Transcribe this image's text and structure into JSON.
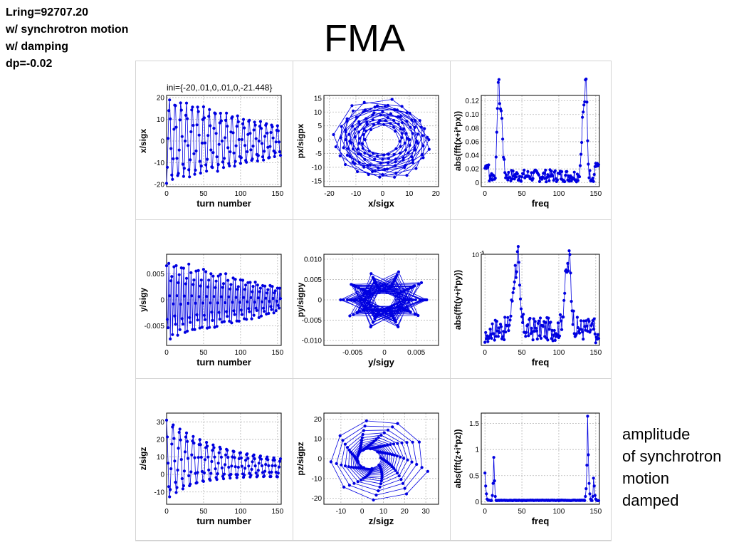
{
  "header": {
    "note_lines": [
      "Lring=92707.20",
      "w/ synchrotron motion",
      "w/ damping",
      "dp=-0.02"
    ],
    "title": "FMA"
  },
  "side_note": [
    "amplitude",
    "of synchrotron",
    "motion",
    "damped"
  ],
  "colors": {
    "series": "#0000e0",
    "grid": "#b4b4b4",
    "background": "#ffffff"
  },
  "chart_data": [
    {
      "id": "p11",
      "type": "line",
      "title": "ini={-20,.01,0,.01,0,-21.448}",
      "xlabel": "turn number",
      "ylabel": "x/sigx",
      "xlim": [
        0,
        155
      ],
      "ylim": [
        -21,
        21
      ],
      "xticks": [
        0,
        50,
        100,
        150
      ],
      "yticks": [
        -20,
        -10,
        0,
        10,
        20
      ],
      "grid": true,
      "ytick_format": "int",
      "xtick_format": "int",
      "gen": {
        "kind": "turns",
        "n": 155,
        "amp0": 20,
        "amp1": 7,
        "tune": 0.13,
        "phase": 3.1416,
        "jitter": 0.12,
        "seed": 3
      }
    },
    {
      "id": "p12",
      "type": "scatter_line",
      "title": "",
      "xlabel": "x/sigx",
      "ylabel": "px/sigpx",
      "xlim": [
        -22,
        21
      ],
      "ylim": [
        -17,
        16
      ],
      "xticks": [
        -20,
        -10,
        0,
        10,
        20
      ],
      "yticks": [
        -15,
        -10,
        -5,
        0,
        5,
        10,
        15
      ],
      "grid": true,
      "ytick_format": "int",
      "xtick_format": "int",
      "gen": {
        "kind": "phase",
        "n": 155,
        "amp0": 20,
        "amp1": 7,
        "tune": 0.13,
        "ratio": 0.78,
        "jitter": 0.15,
        "seed": 5
      }
    },
    {
      "id": "p13",
      "type": "line",
      "title": "",
      "xlabel": "freq",
      "ylabel": "abs(fft(x+i*px))",
      "xlim": [
        -5,
        155
      ],
      "ylim": [
        -0.006,
        0.128
      ],
      "xticks": [
        0,
        50,
        100,
        150
      ],
      "yticks": [
        0,
        0.02,
        0.04,
        0.06,
        0.08,
        0.1,
        0.12
      ],
      "grid": true,
      "ytick_format": "dec2",
      "xtick_format": "int",
      "gen": {
        "kind": "spec",
        "n": 155,
        "peaks": [
          [
            18,
            0.123,
            2.2
          ],
          [
            22,
            0.09,
            3
          ],
          [
            133,
            0.09,
            3
          ],
          [
            137,
            0.123,
            2.2
          ]
        ],
        "base": 0.01,
        "noise": 0.009,
        "edge": 0.02,
        "seed": 7
      }
    },
    {
      "id": "p21",
      "type": "line",
      "title": "",
      "xlabel": "turn number",
      "ylabel": "y/sigy",
      "xlim": [
        0,
        155
      ],
      "ylim": [
        -0.0088,
        0.0088
      ],
      "xticks": [
        0,
        50,
        100,
        150
      ],
      "yticks": [
        -0.005,
        0,
        0.005
      ],
      "grid": true,
      "ytick_format": "dec3",
      "xtick_format": "int",
      "gen": {
        "kind": "turns",
        "n": 155,
        "amp0": 0.0082,
        "amp1": 0.0025,
        "tune": 0.3,
        "phase": 0.2,
        "jitter": 0.2,
        "seed": 11
      }
    },
    {
      "id": "p22",
      "type": "scatter_line",
      "title": "",
      "xlabel": "y/sigy",
      "ylabel": "py/sigpy",
      "xlim": [
        -0.0095,
        0.0085
      ],
      "ylim": [
        -0.0112,
        0.0112
      ],
      "xticks": [
        -0.005,
        0,
        0.005
      ],
      "yticks": [
        -0.01,
        -0.005,
        0,
        0.005,
        0.01
      ],
      "grid": true,
      "ytick_format": "dec3",
      "xtick_format": "dec3",
      "gen": {
        "kind": "phase",
        "n": 155,
        "amp0": 0.0075,
        "amp1": 0.0028,
        "tune": 0.3,
        "ratio": 1.0,
        "jitter": 0.25,
        "seed": 13
      }
    },
    {
      "id": "p23",
      "type": "line",
      "title": "",
      "xlabel": "freq",
      "ylabel": "abs(fft(y+i*py))",
      "yexp": "10",
      "xlim": [
        -5,
        155
      ],
      "ylim": [
        0,
        1.95
      ],
      "xticks": [
        0,
        50,
        100,
        150
      ],
      "yticks": [],
      "grid": true,
      "ytick_format": "none",
      "xtick_format": "int",
      "gen": {
        "kind": "spec",
        "n": 155,
        "peaks": [
          [
            42,
            1.3,
            6
          ],
          [
            45,
            0.6,
            1.5
          ],
          [
            112,
            1.3,
            6
          ],
          [
            115,
            0.5,
            1.5
          ]
        ],
        "base": 0.35,
        "noise": 0.25,
        "edge": 0.05,
        "seed": 17
      }
    },
    {
      "id": "p31",
      "type": "line",
      "title": "",
      "xlabel": "turn number",
      "ylabel": "z/sigz",
      "xlim": [
        0,
        155
      ],
      "ylim": [
        -17,
        35
      ],
      "xticks": [
        0,
        50,
        100,
        150
      ],
      "yticks": [
        -10,
        0,
        10,
        20,
        30
      ],
      "grid": true,
      "ytick_format": "int",
      "xtick_format": "int",
      "gen": {
        "kind": "zturns",
        "n": 155,
        "center": 9,
        "amp0": 23,
        "decay": 55,
        "floor": 0.18,
        "tune": 0.11,
        "seed": 19
      }
    },
    {
      "id": "p32",
      "type": "scatter_line",
      "title": "",
      "xlabel": "z/sigz",
      "ylabel": "pz/sigpz",
      "xlim": [
        -18,
        36
      ],
      "ylim": [
        -23,
        23
      ],
      "xticks": [
        -10,
        0,
        10,
        20,
        30
      ],
      "yticks": [
        -20,
        -10,
        0,
        10,
        20
      ],
      "grid": true,
      "ytick_format": "int",
      "xtick_format": "int",
      "gen": {
        "kind": "spiral",
        "n": 155,
        "center": [
          8,
          0
        ],
        "r0": 24,
        "decay": 55,
        "floor": 0.18,
        "ratio": 0.9,
        "tune": 0.11,
        "seed": 23
      }
    },
    {
      "id": "p33",
      "type": "line",
      "title": "",
      "xlabel": "freq",
      "ylabel": "abs(fft(z+i*pz))",
      "xlim": [
        -5,
        155
      ],
      "ylim": [
        -0.05,
        1.7
      ],
      "xticks": [
        0,
        50,
        100,
        150
      ],
      "yticks": [
        0,
        0.5,
        1,
        1.5
      ],
      "grid": true,
      "ytick_format": "dec1",
      "xtick_format": "int",
      "gen": {
        "kind": "zspec",
        "n": 155,
        "seed": 29
      }
    }
  ]
}
